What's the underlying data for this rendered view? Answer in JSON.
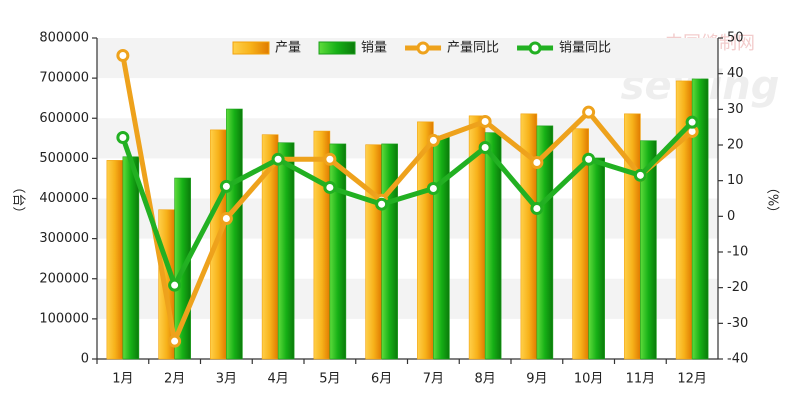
{
  "chart_data": {
    "type": "bar-line",
    "watermark": "中国缝制网",
    "watermark_logo": "sewing",
    "categories": [
      "1月",
      "2月",
      "3月",
      "4月",
      "5月",
      "6月",
      "7月",
      "8月",
      "9月",
      "10月",
      "11月",
      "12月"
    ],
    "y_label": "（台）",
    "y2_label": "（%）",
    "ylim": [
      0,
      800000
    ],
    "yticks": [
      0,
      100000,
      200000,
      300000,
      400000,
      500000,
      600000,
      700000,
      800000
    ],
    "y2lim": [
      -40,
      50
    ],
    "y2ticks": [
      -40,
      -30,
      -20,
      -10,
      0,
      10,
      20,
      30,
      40,
      50
    ],
    "grid": true,
    "legend": "top",
    "series": [
      {
        "name": "产量",
        "type": "bar",
        "color": "#f2a20c",
        "values": [
          495000,
          372000,
          571000,
          559000,
          568000,
          534000,
          591000,
          606000,
          611000,
          574000,
          611000,
          693000
        ]
      },
      {
        "name": "销量",
        "type": "bar",
        "color": "#1a9e1a",
        "values": [
          504000,
          451000,
          623000,
          539000,
          536000,
          536000,
          556000,
          564000,
          581000,
          501000,
          544000,
          698000
        ]
      },
      {
        "name": "产量同比",
        "type": "line",
        "axis": "y2",
        "color": "#eea21c",
        "values": [
          45.1,
          -35,
          -0.6,
          16,
          16,
          4.5,
          21.3,
          26.6,
          15.1,
          29.2,
          11.5,
          23.8
        ]
      },
      {
        "name": "销量同比",
        "type": "line",
        "axis": "y2",
        "color": "#22b022",
        "values": [
          22.1,
          -19.3,
          8.4,
          16,
          8.1,
          3.4,
          7.8,
          19.3,
          2.2,
          16,
          11.5,
          26.4
        ]
      }
    ]
  }
}
